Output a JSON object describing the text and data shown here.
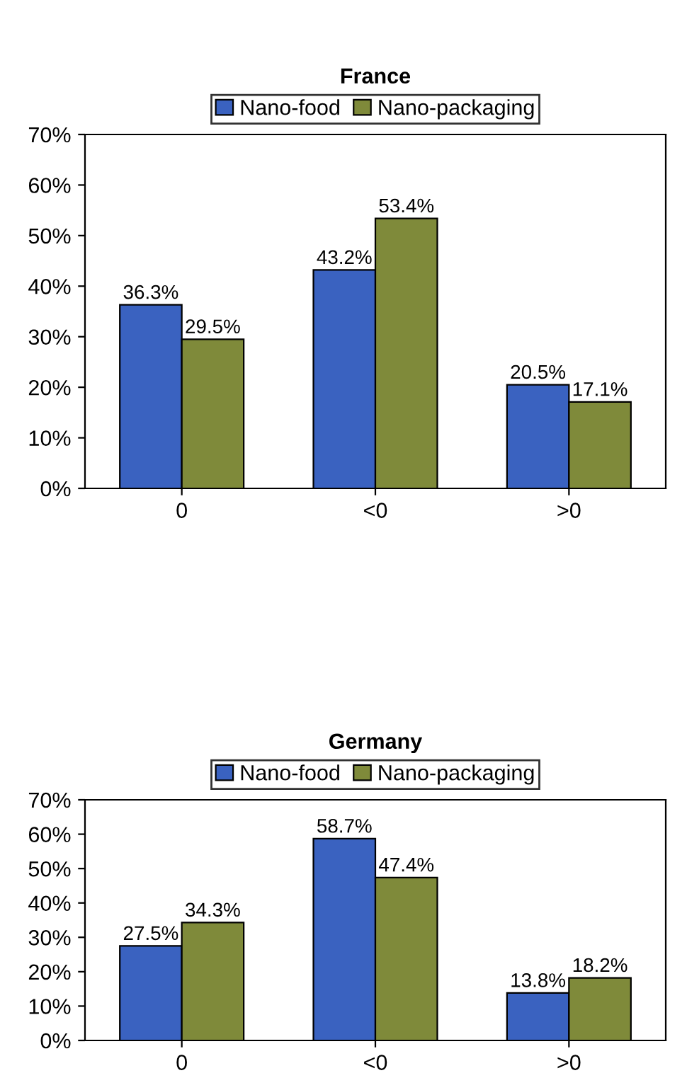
{
  "chart_data": [
    {
      "type": "bar",
      "title": "France",
      "categories": [
        "0",
        "<0",
        ">0"
      ],
      "legend": "top",
      "ylim": [
        0,
        70
      ],
      "yticks": [
        {
          "value": 0,
          "label": "0%"
        },
        {
          "value": 10,
          "label": "10%"
        },
        {
          "value": 20,
          "label": "20%"
        },
        {
          "value": 30,
          "label": "30%"
        },
        {
          "value": 40,
          "label": "40%"
        },
        {
          "value": 50,
          "label": "50%"
        },
        {
          "value": 60,
          "label": "60%"
        },
        {
          "value": 70,
          "label": "70%"
        }
      ],
      "series": [
        {
          "name": "Nano-food",
          "color": "#3a62c0",
          "values": [
            36.3,
            43.2,
            20.5
          ],
          "value_labels": [
            "36.3%",
            "43.2%",
            "20.5%"
          ]
        },
        {
          "name": "Nano-packaging",
          "color": "#7f8a3a",
          "values": [
            29.5,
            53.4,
            17.1
          ],
          "value_labels": [
            "29.5%",
            "53.4%",
            "17.1%"
          ]
        }
      ]
    },
    {
      "type": "bar",
      "title": "Germany",
      "categories": [
        "0",
        "<0",
        ">0"
      ],
      "legend": "top",
      "ylim": [
        0,
        70
      ],
      "yticks": [
        {
          "value": 0,
          "label": "0%"
        },
        {
          "value": 10,
          "label": "10%"
        },
        {
          "value": 20,
          "label": "20%"
        },
        {
          "value": 30,
          "label": "30%"
        },
        {
          "value": 40,
          "label": "40%"
        },
        {
          "value": 50,
          "label": "50%"
        },
        {
          "value": 60,
          "label": "60%"
        },
        {
          "value": 70,
          "label": "70%"
        }
      ],
      "series": [
        {
          "name": "Nano-food",
          "color": "#3a62c0",
          "values": [
            27.5,
            58.7,
            13.8
          ],
          "value_labels": [
            "27.5%",
            "58.7%",
            "13.8%"
          ]
        },
        {
          "name": "Nano-packaging",
          "color": "#7f8a3a",
          "values": [
            34.3,
            47.4,
            18.2
          ],
          "value_labels": [
            "34.3%",
            "47.4%",
            "18.2%"
          ]
        }
      ]
    }
  ]
}
